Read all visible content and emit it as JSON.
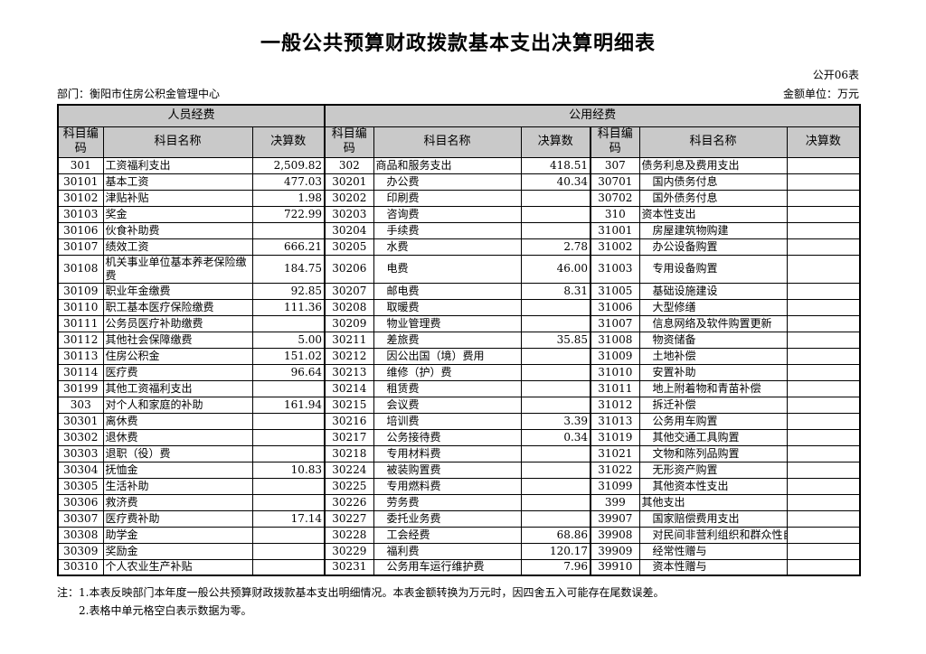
{
  "header": {
    "title": "一般公共预算财政拨款基本支出决算明细表",
    "form_code": "公开06表",
    "department": "部门：衡阳市住房公积金管理中心",
    "unit": "金额单位：万元"
  },
  "colors": {
    "header_bg": "#c9c9c9",
    "border": "#000000",
    "page_bg": "#ffffff"
  },
  "table": {
    "group_headers": {
      "personnel": "人员经费",
      "public": "公用经费"
    },
    "column_headers": [
      "科目编码",
      "科目名称",
      "决算数",
      "科目编码",
      "科目名称",
      "决算数",
      "科目编码",
      "科目名称",
      "决算数"
    ],
    "rows": [
      [
        "301",
        "工资福利支出",
        "2,509.82",
        "302",
        "商品和服务支出",
        "418.51",
        "307",
        "债务利息及费用支出",
        ""
      ],
      [
        "30101",
        "基本工资",
        "477.03",
        "30201",
        "办公费",
        "40.34",
        "30701",
        "国内债务付息",
        ""
      ],
      [
        "30102",
        "津贴补贴",
        "1.98",
        "30202",
        "印刷费",
        "",
        "30702",
        "国外债务付息",
        ""
      ],
      [
        "30103",
        "奖金",
        "722.99",
        "30203",
        "咨询费",
        "",
        "310",
        "资本性支出",
        ""
      ],
      [
        "30106",
        "伙食补助费",
        "",
        "30204",
        "手续费",
        "",
        "31001",
        "房屋建筑物购建",
        ""
      ],
      [
        "30107",
        "绩效工资",
        "666.21",
        "30205",
        "水费",
        "2.78",
        "31002",
        "办公设备购置",
        ""
      ],
      [
        "30108",
        "机关事业单位基本养老保险缴\n费",
        "184.75",
        "30206",
        "电费",
        "46.00",
        "31003",
        "专用设备购置",
        ""
      ],
      [
        "30109",
        "职业年金缴费",
        "92.85",
        "30207",
        "邮电费",
        "8.31",
        "31005",
        "基础设施建设",
        ""
      ],
      [
        "30110",
        "职工基本医疗保险缴费",
        "111.36",
        "30208",
        "取暖费",
        "",
        "31006",
        "大型修缮",
        ""
      ],
      [
        "30111",
        "公务员医疗补助缴费",
        "",
        "30209",
        "物业管理费",
        "",
        "31007",
        "信息网络及软件购置更新",
        ""
      ],
      [
        "30112",
        "其他社会保障缴费",
        "5.00",
        "30211",
        "差旅费",
        "35.85",
        "31008",
        "物资储备",
        ""
      ],
      [
        "30113",
        "住房公积金",
        "151.02",
        "30212",
        "因公出国（境）费用",
        "",
        "31009",
        "土地补偿",
        ""
      ],
      [
        "30114",
        "医疗费",
        "96.64",
        "30213",
        "维修（护）费",
        "",
        "31010",
        "安置补助",
        ""
      ],
      [
        "30199",
        "其他工资福利支出",
        "",
        "30214",
        "租赁费",
        "",
        "31011",
        "地上附着物和青苗补偿",
        ""
      ],
      [
        "303",
        "对个人和家庭的补助",
        "161.94",
        "30215",
        "会议费",
        "",
        "31012",
        "拆迁补偿",
        ""
      ],
      [
        "30301",
        "离休费",
        "",
        "30216",
        "培训费",
        "3.39",
        "31013",
        "公务用车购置",
        ""
      ],
      [
        "30302",
        "退休费",
        "",
        "30217",
        "公务接待费",
        "0.34",
        "31019",
        "其他交通工具购置",
        ""
      ],
      [
        "30303",
        "退职（役）费",
        "",
        "30218",
        "专用材料费",
        "",
        "31021",
        "文物和陈列品购置",
        ""
      ],
      [
        "30304",
        "抚恤金",
        "10.83",
        "30224",
        "被装购置费",
        "",
        "31022",
        "无形资产购置",
        ""
      ],
      [
        "30305",
        "生活补助",
        "",
        "30225",
        "专用燃料费",
        "",
        "31099",
        "其他资本性支出",
        ""
      ],
      [
        "30306",
        "救济费",
        "",
        "30226",
        "劳务费",
        "",
        "399",
        "其他支出",
        ""
      ],
      [
        "30307",
        "医疗费补助",
        "17.14",
        "30227",
        "委托业务费",
        "",
        "39907",
        "国家赔偿费用支出",
        ""
      ],
      [
        "30308",
        "助学金",
        "",
        "30228",
        "工会经费",
        "68.86",
        "39908",
        "对民间非营利组织和群众性自",
        ""
      ],
      [
        "30309",
        "奖励金",
        "",
        "30229",
        "福利费",
        "120.17",
        "39909",
        "经常性赠与",
        ""
      ],
      [
        "30310",
        "个人农业生产补贴",
        "",
        "30231",
        "公务用车运行维护费",
        "7.96",
        "39910",
        "资本性赠与",
        ""
      ]
    ]
  },
  "notes": {
    "prefix": "注：",
    "lines": [
      "1.本表反映部门本年度一般公共预算财政拨款基本支出明细情况。本表金额转换为万元时，因四舍五入可能存在尾数误差。",
      "2.表格中单元格空白表示数据为零。"
    ]
  }
}
